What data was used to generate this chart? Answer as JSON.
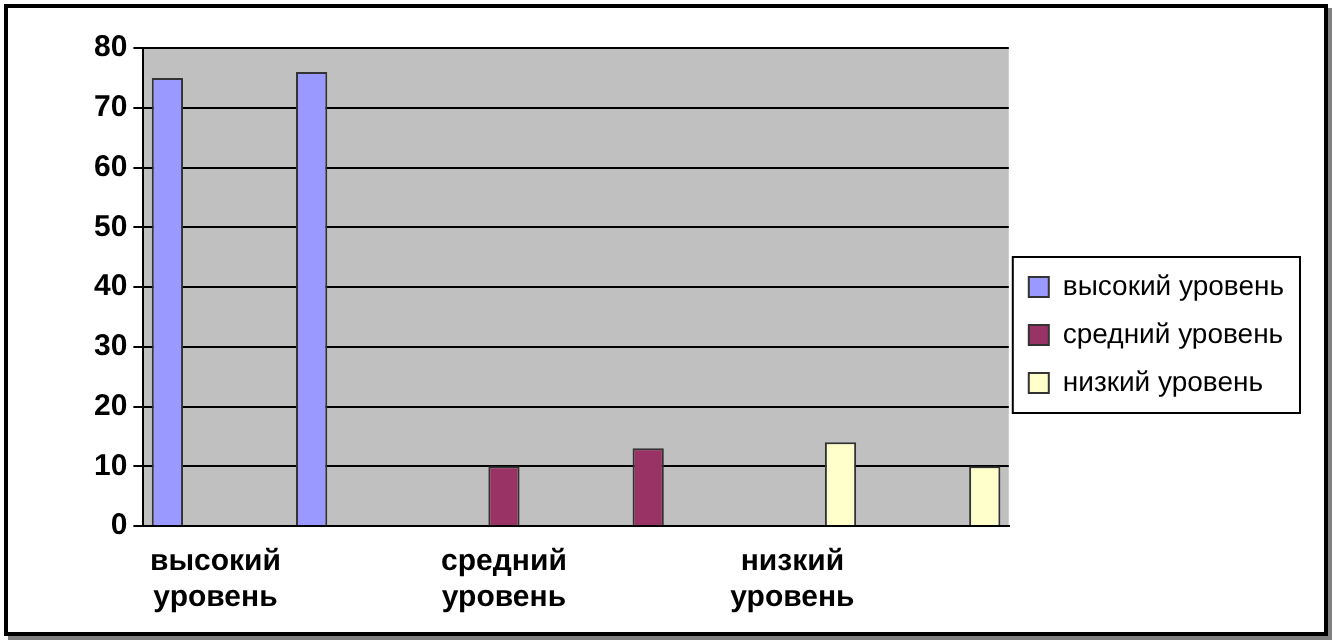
{
  "chart_data": {
    "type": "bar",
    "categories": [
      "высокий уровень",
      null,
      "средний уровень",
      null,
      "низкий уровень",
      null
    ],
    "series": [
      {
        "name": "высокий уровень",
        "color": "#9999ff",
        "values": [
          75,
          76,
          null,
          null,
          null,
          null
        ]
      },
      {
        "name": "средний уровень",
        "color": "#993366",
        "values": [
          null,
          null,
          10,
          13,
          null,
          null
        ]
      },
      {
        "name": "низкий уровень",
        "color": "#ffffcc",
        "values": [
          null,
          null,
          null,
          null,
          14,
          10
        ]
      }
    ],
    "ylim": [
      0,
      80
    ],
    "yticks": [
      0,
      10,
      20,
      30,
      40,
      50,
      60,
      70,
      80
    ],
    "grid": "y",
    "legend": "right"
  }
}
